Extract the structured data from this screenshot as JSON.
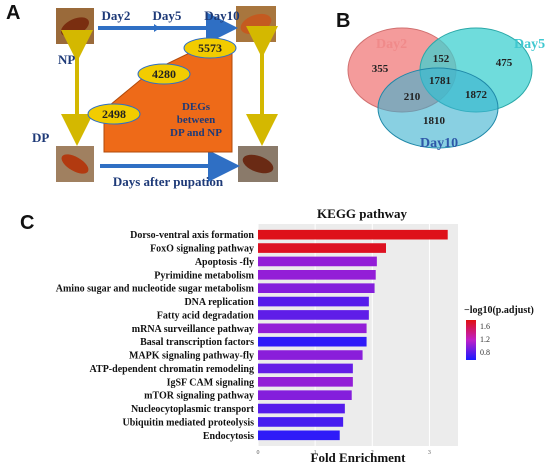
{
  "panels": {
    "a": "A",
    "b": "B",
    "c": "C"
  },
  "panel_a": {
    "days": [
      "Day2",
      "Day5",
      "Day10"
    ],
    "np_label": "NP",
    "dp_label": "DP",
    "x_axis_label": "Days after pupation",
    "deg_text": [
      "DEGs",
      "between",
      "DP and NP"
    ],
    "colors": {
      "arrow": "#2f6fc4",
      "bar": "#ee6a18",
      "ellipse": "#f2cc00",
      "vertical_arrow": "#d4b800"
    }
  },
  "chart_data": [
    {
      "type": "bar",
      "categories": [
        "Day2",
        "Day5",
        "Day10"
      ],
      "values": [
        2498,
        4280,
        5573
      ]
    },
    {
      "type": "venn",
      "sets": [
        {
          "name": "Day2",
          "color": "#f28a8a"
        },
        {
          "name": "Day5",
          "color": "#3fd0d0"
        },
        {
          "name": "Day10",
          "color": "#3ab0cf"
        }
      ],
      "regions": {
        "Day2_only": 355,
        "Day2_Day5": 152,
        "Day5_only": 475,
        "Day2_Day10": 210,
        "all_three": 1781,
        "Day5_Day10": 1872,
        "Day10_only": 1810
      }
    },
    {
      "type": "bar",
      "orientation": "horizontal",
      "title": "KEGG pathway",
      "xlabel": "Fold Enrichment",
      "xlim": [
        0,
        3.5
      ],
      "xticks": [
        "0",
        "1",
        "2",
        "3"
      ],
      "legend_title": "−log10(p.adjust)",
      "legend_ticks": [
        "1.6",
        "1.2",
        "0.8"
      ],
      "color_range": [
        0.65,
        1.75
      ],
      "categories": [
        "Dorso-ventral axis formation",
        "FoxO signaling pathway",
        "Apoptosis -fly",
        "Pyrimidine metabolism",
        "Amino sugar and nucleotide sugar metabolism",
        "DNA replication",
        "Fatty acid degradation",
        "mRNA surveillance pathway",
        "Basal transcription factors",
        "MAPK signaling pathway-fly",
        "ATP-dependent chromatin remodeling",
        "IgSF CAM signaling",
        "mTOR signaling pathway",
        "Nucleocytoplasmic transport",
        "Ubiquitin mediated proteolysis",
        "Endocytosis"
      ],
      "values": [
        3.32,
        2.24,
        2.08,
        2.06,
        2.04,
        1.94,
        1.94,
        1.9,
        1.9,
        1.83,
        1.66,
        1.66,
        1.64,
        1.52,
        1.49,
        1.43
      ],
      "p_adjust_log": [
        1.72,
        1.7,
        1.05,
        1.05,
        1.0,
        0.85,
        0.88,
        1.05,
        0.72,
        1.02,
        0.9,
        1.05,
        1.0,
        0.85,
        0.8,
        0.72
      ]
    }
  ]
}
